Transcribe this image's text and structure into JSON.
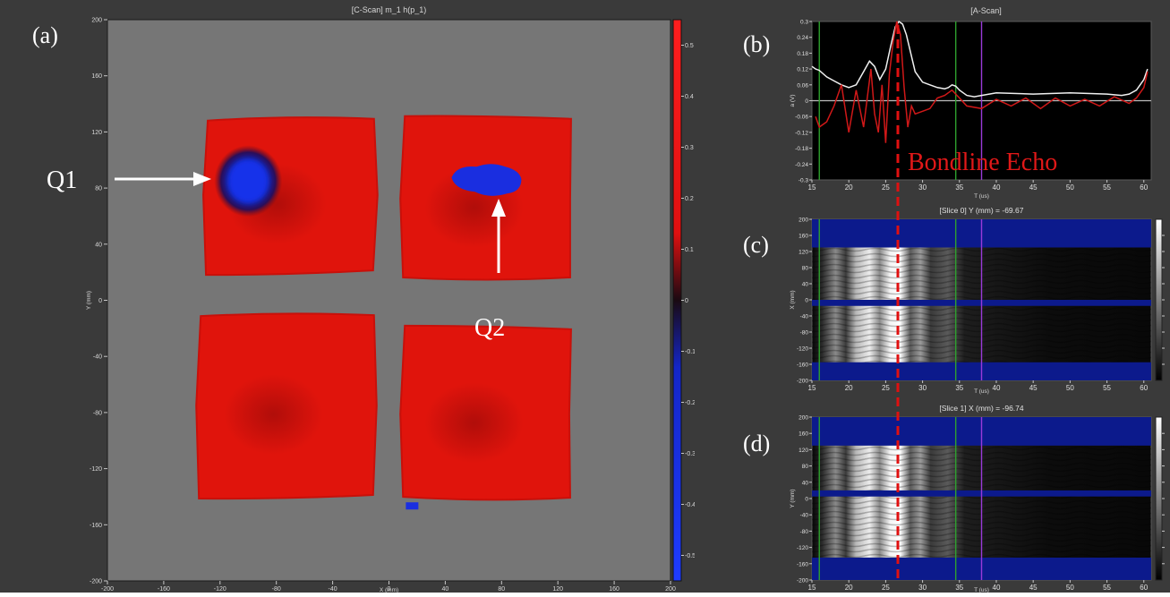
{
  "panel_labels": {
    "a": "(a)",
    "b": "(b)",
    "c": "(c)",
    "d": "(d)"
  },
  "annotations": {
    "q1": "Q1",
    "q2": "Q2",
    "bondline": "Bondline Echo"
  },
  "colors": {
    "background": "#3c3c3c",
    "plot_gray": "#767676",
    "specimen_red": "#e0140c",
    "defect_blue": "#1a2ee0",
    "probe_white": "#ffffff",
    "dashed_red": "#e01010",
    "gate_green": "#2ea02e",
    "gate_purple": "#9a3ad8",
    "slice_blue": "#0c1a8c"
  },
  "chart_data": [
    {
      "id": "c-scan",
      "type": "heatmap",
      "title": "[C-Scan] m_1 h(p_1)",
      "xlabel": "X (mm)",
      "ylabel": "Y (mm)",
      "xlim": [
        -200,
        200
      ],
      "ylim": [
        -200,
        200
      ],
      "xticks": [
        -200,
        -160,
        -120,
        -80,
        -40,
        0,
        40,
        80,
        120,
        160,
        200
      ],
      "yticks": [
        200,
        160,
        120,
        80,
        40,
        0,
        -40,
        -80,
        -120,
        -160,
        -200
      ],
      "colorbar": {
        "range": [
          -0.55,
          0.55
        ],
        "ticks": [
          0.5,
          0.4,
          0.3,
          0.2,
          0.1,
          0,
          -0.1,
          -0.2,
          -0.3,
          -0.4,
          -0.5
        ]
      },
      "regions": [
        {
          "name": "specimen-top-left",
          "x": [
            -130,
            -10
          ],
          "y": [
            20,
            130
          ]
        },
        {
          "name": "specimen-top-right",
          "x": [
            10,
            130
          ],
          "y": [
            15,
            130
          ]
        },
        {
          "name": "specimen-bottom-left",
          "x": [
            -135,
            -10
          ],
          "y": [
            -140,
            -10
          ]
        },
        {
          "name": "specimen-bottom-right",
          "x": [
            10,
            130
          ],
          "y": [
            -142,
            -20
          ]
        }
      ],
      "defects": [
        {
          "label": "Q1",
          "x": -100,
          "y": 85
        },
        {
          "label": "Q2",
          "x": 75,
          "y": 85
        }
      ]
    },
    {
      "id": "a-scan",
      "type": "line",
      "title": "[A-Scan]",
      "xlabel": "T (us)",
      "ylabel": "a (V)",
      "xlim": [
        15,
        61
      ],
      "ylim": [
        -0.3,
        0.3
      ],
      "xticks": [
        15,
        20,
        25,
        30,
        35,
        40,
        45,
        50,
        55,
        60
      ],
      "yticks": [
        0.3,
        0.24,
        0.18,
        0.12,
        0.06,
        0,
        -0.06,
        -0.12,
        -0.18,
        -0.24,
        -0.3
      ],
      "gates": [
        16,
        34.5,
        38
      ],
      "series": [
        {
          "color": "white",
          "x": [
            15,
            15.5,
            16,
            17,
            18,
            19,
            20,
            21,
            22,
            22.8,
            23.5,
            24.2,
            25,
            25.7,
            26.3,
            26.8,
            27.3,
            27.8,
            28.4,
            29,
            30,
            31,
            32,
            33,
            33.5,
            34,
            34.5,
            35,
            36,
            37,
            38,
            40,
            45,
            50,
            55,
            57,
            58,
            59,
            60,
            60.5
          ],
          "y": [
            0.13,
            0.12,
            0.115,
            0.09,
            0.075,
            0.06,
            0.05,
            0.06,
            0.11,
            0.15,
            0.13,
            0.08,
            0.12,
            0.21,
            0.28,
            0.3,
            0.29,
            0.25,
            0.18,
            0.11,
            0.07,
            0.06,
            0.05,
            0.045,
            0.05,
            0.06,
            0.055,
            0.04,
            0.02,
            0.015,
            0.02,
            0.03,
            0.025,
            0.03,
            0.025,
            0.02,
            0.025,
            0.04,
            0.08,
            0.12
          ]
        },
        {
          "color": "red",
          "x": [
            15.5,
            16,
            17,
            18,
            19,
            20,
            21,
            22,
            23,
            23.5,
            24,
            24.5,
            25,
            25.5,
            26,
            26.5,
            27,
            27.5,
            28,
            28.5,
            29,
            30,
            31,
            32,
            33,
            34,
            35,
            36,
            38,
            40,
            42,
            44,
            46,
            48,
            50,
            52,
            54,
            56,
            58,
            59,
            60,
            60.5
          ],
          "y": [
            -0.06,
            -0.1,
            -0.08,
            -0.02,
            0.06,
            -0.12,
            0.04,
            -0.1,
            0.12,
            -0.05,
            -0.12,
            0.06,
            -0.16,
            0.1,
            0.22,
            0.3,
            0.25,
            0.05,
            -0.1,
            -0.02,
            -0.05,
            -0.04,
            -0.03,
            0.01,
            0.02,
            0.04,
            0.01,
            -0.02,
            -0.03,
            0.005,
            -0.02,
            0.01,
            -0.03,
            0.01,
            -0.02,
            0.005,
            -0.02,
            0.015,
            -0.01,
            0.01,
            0.05,
            0.11
          ]
        }
      ]
    },
    {
      "id": "slice-0",
      "type": "heatmap",
      "title": "[Slice 0] Y (mm) = -69.67",
      "xlabel": "T (us)",
      "ylabel": "X (mm)",
      "xlim": [
        15,
        61
      ],
      "ylim": [
        -200,
        200
      ],
      "xticks": [
        15,
        20,
        25,
        30,
        35,
        40,
        45,
        50,
        55,
        60
      ],
      "yticks": [
        200,
        160,
        120,
        80,
        40,
        0,
        -40,
        -80,
        -120,
        -160,
        -200
      ],
      "no_signal_bands": [
        [
          130,
          200
        ],
        [
          -15,
          0
        ],
        [
          -200,
          -155
        ]
      ]
    },
    {
      "id": "slice-1",
      "type": "heatmap",
      "title": "[Slice 1] X (mm) = -96.74",
      "xlabel": "T (us)",
      "ylabel": "Y (mm)",
      "xlim": [
        15,
        61
      ],
      "ylim": [
        -200,
        200
      ],
      "xticks": [
        15,
        20,
        25,
        30,
        35,
        40,
        45,
        50,
        55,
        60
      ],
      "yticks": [
        200,
        160,
        120,
        80,
        40,
        0,
        -40,
        -80,
        -120,
        -160,
        -200
      ],
      "no_signal_bands": [
        [
          130,
          200
        ],
        [
          5,
          20
        ],
        [
          -200,
          -145
        ]
      ]
    }
  ]
}
